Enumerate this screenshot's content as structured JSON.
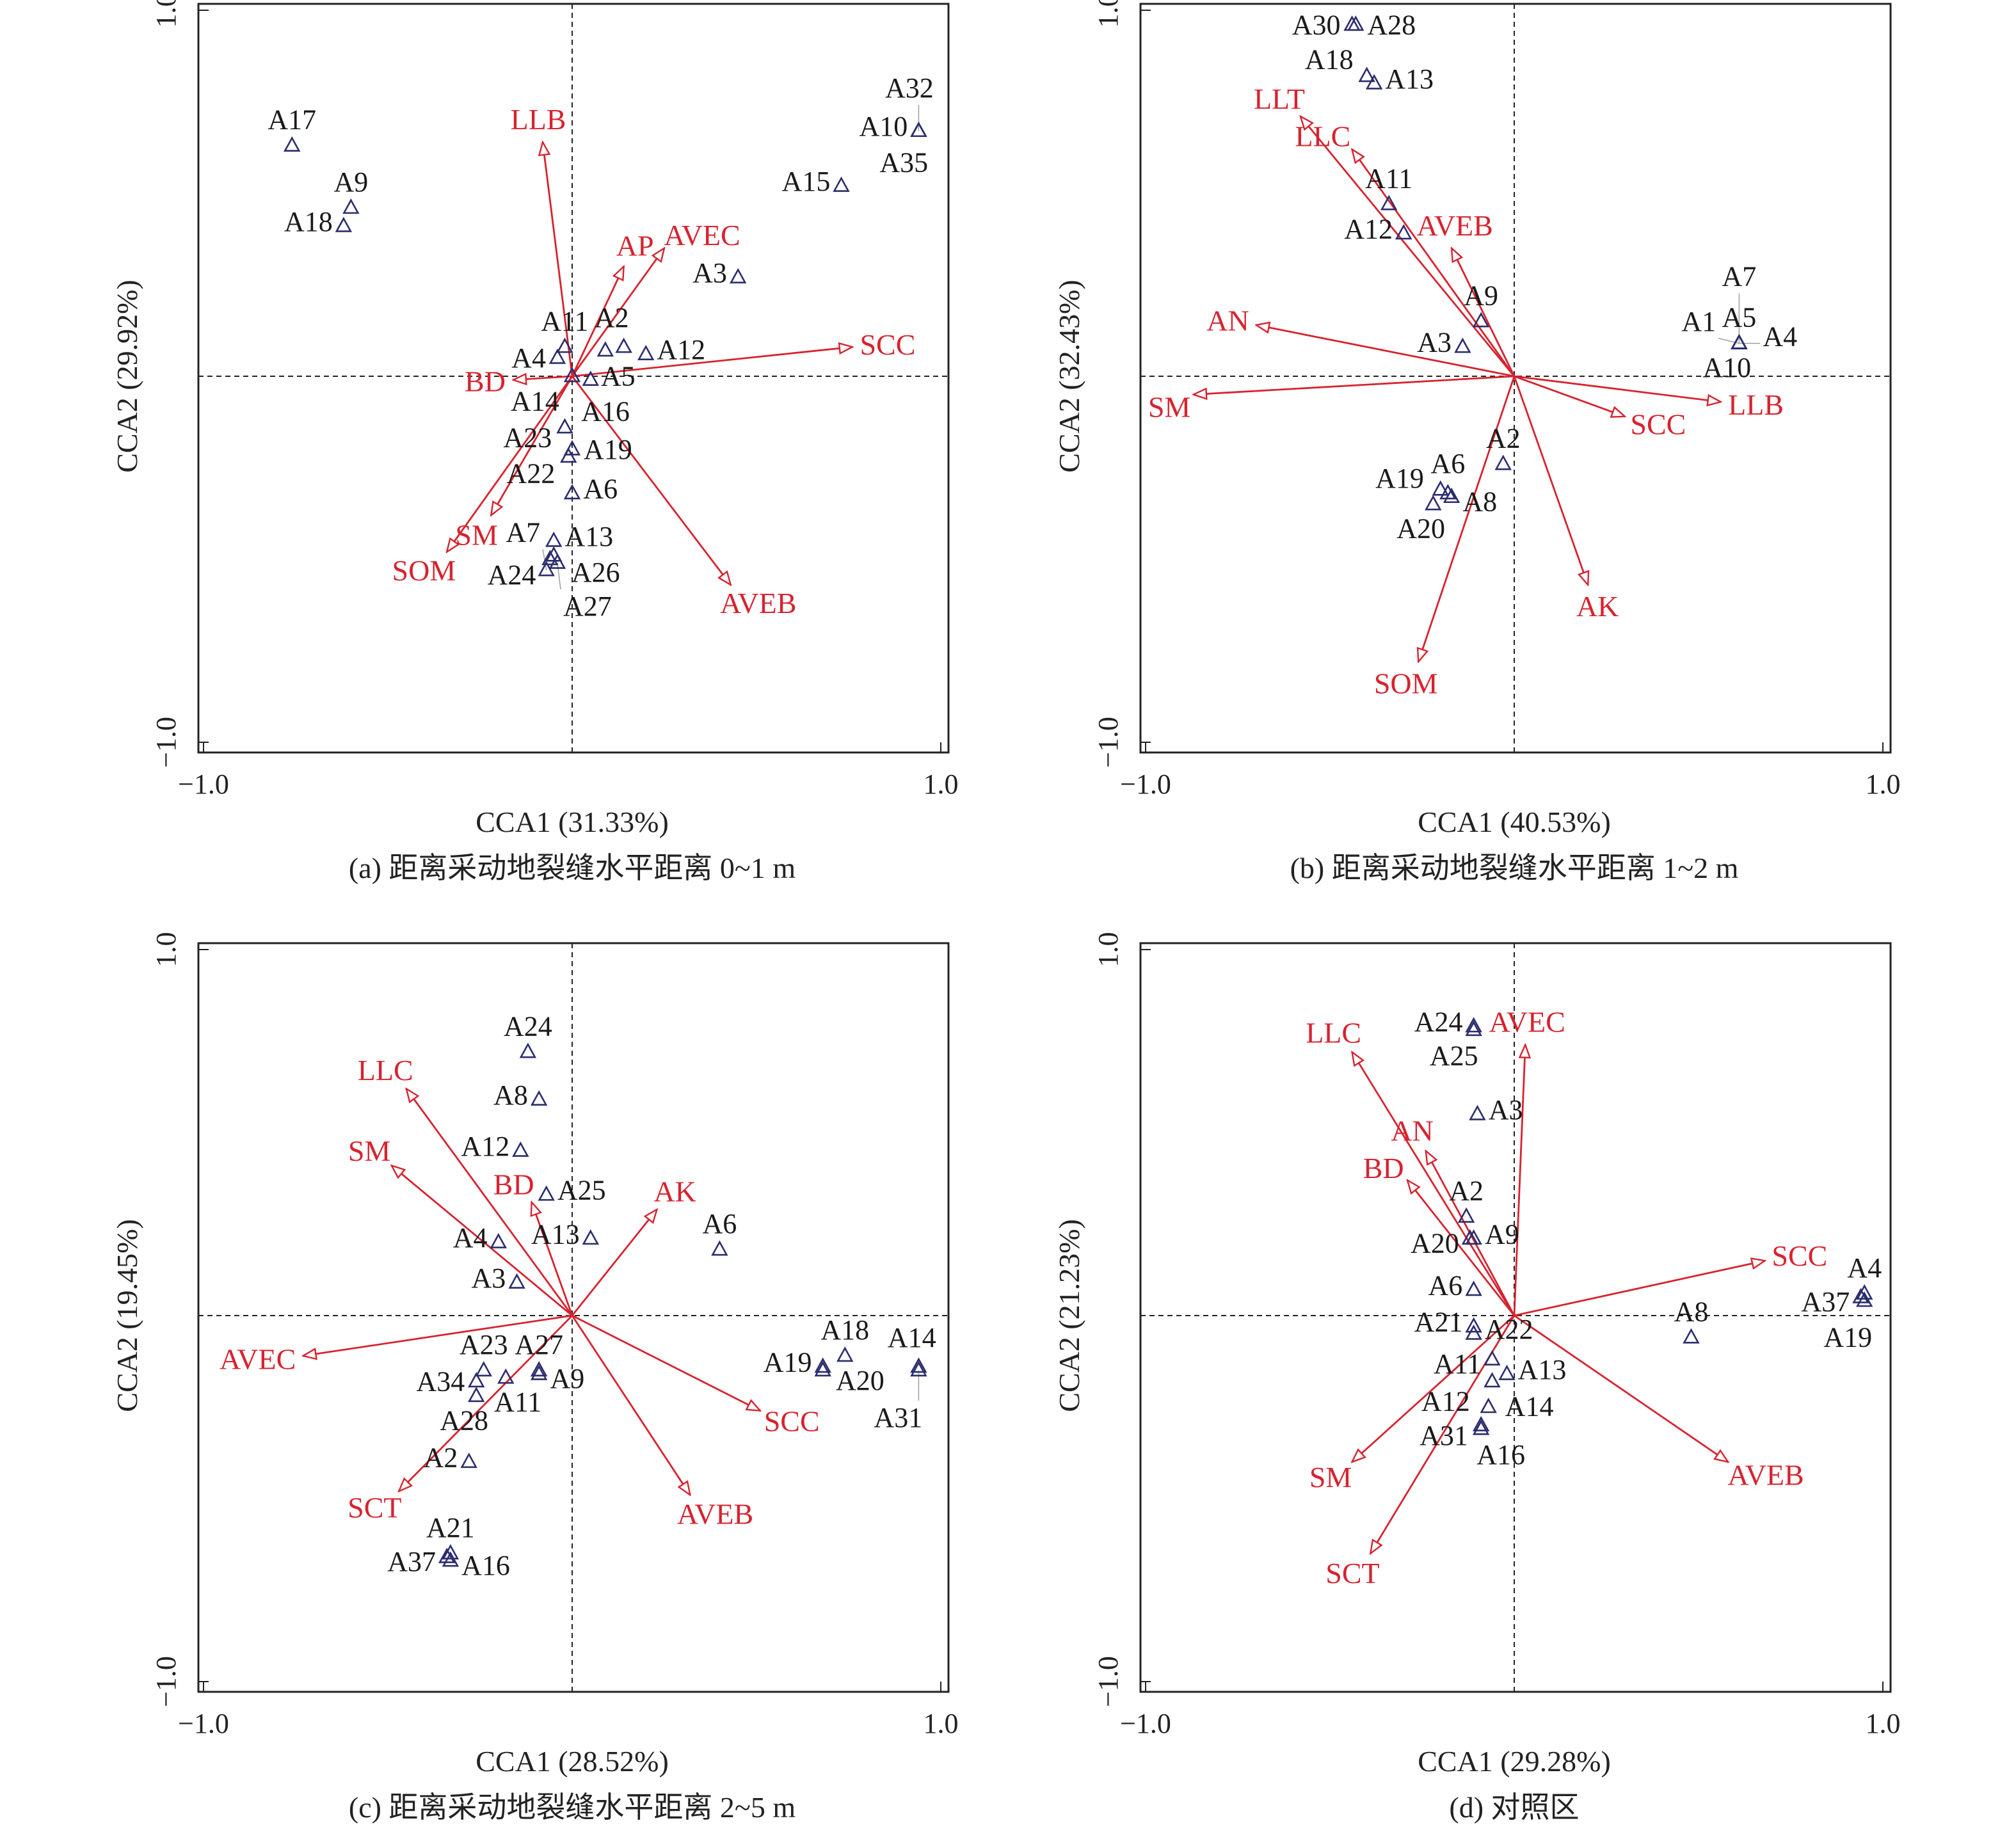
{
  "colors": {
    "arrow": "#d7232f",
    "site": "#2b2d6e",
    "axis": "#222222"
  },
  "chart_data": [
    {
      "type": "scatter",
      "caption": "(a) 距离采动地裂缝水平距离 0~1 m",
      "xlabel": "CCA1 (31.33%)",
      "ylabel": "CCA2 (29.92%)",
      "xlim": [
        -1.0,
        1.0
      ],
      "ylim": [
        -1.0,
        1.0
      ],
      "xticks": [
        "−1.0",
        "1.0"
      ],
      "yticks": [
        "−1.0",
        "1.0"
      ],
      "sites": [
        {
          "label": "A17",
          "x": -0.76,
          "y": 0.63
        },
        {
          "label": "A9",
          "x": -0.6,
          "y": 0.46
        },
        {
          "label": "A18",
          "x": -0.62,
          "y": 0.41
        },
        {
          "label": "A10",
          "x": 0.94,
          "y": 0.67
        },
        {
          "label": "A35",
          "x": 0.94,
          "y": 0.67
        },
        {
          "label": "A32",
          "x": 0.94,
          "y": 0.67
        },
        {
          "label": "A15",
          "x": 0.73,
          "y": 0.52
        },
        {
          "label": "A3",
          "x": 0.45,
          "y": 0.27
        },
        {
          "label": "A11",
          "x": -0.02,
          "y": 0.08
        },
        {
          "label": "A4",
          "x": -0.04,
          "y": 0.05
        },
        {
          "label": "A2",
          "x": 0.09,
          "y": 0.07
        },
        {
          "label": "A5",
          "x": 0.14,
          "y": 0.08
        },
        {
          "label": "A12",
          "x": 0.2,
          "y": 0.06
        },
        {
          "label": "A14",
          "x": 0.0,
          "y": 0.0
        },
        {
          "label": "A16",
          "x": 0.05,
          "y": -0.01
        },
        {
          "label": "A23",
          "x": -0.02,
          "y": -0.14
        },
        {
          "label": "A19",
          "x": 0.0,
          "y": -0.2
        },
        {
          "label": "A22",
          "x": -0.01,
          "y": -0.22
        },
        {
          "label": "A6",
          "x": 0.0,
          "y": -0.32
        },
        {
          "label": "A13",
          "x": -0.05,
          "y": -0.45
        },
        {
          "label": "A24",
          "x": -0.05,
          "y": -0.49
        },
        {
          "label": "A26",
          "x": -0.06,
          "y": -0.5
        },
        {
          "label": "A27",
          "x": -0.04,
          "y": -0.51
        },
        {
          "label": "A7",
          "x": -0.07,
          "y": -0.53
        }
      ],
      "vectors": [
        {
          "label": "LLB",
          "x": -0.08,
          "y": 0.64
        },
        {
          "label": "AP",
          "x": 0.14,
          "y": 0.3
        },
        {
          "label": "AVEC",
          "x": 0.25,
          "y": 0.35
        },
        {
          "label": "SCC",
          "x": 0.76,
          "y": 0.08
        },
        {
          "label": "BD",
          "x": -0.16,
          "y": -0.01
        },
        {
          "label": "SM",
          "x": -0.22,
          "y": -0.38
        },
        {
          "label": "SOM",
          "x": -0.34,
          "y": -0.48
        },
        {
          "label": "AVEB",
          "x": 0.43,
          "y": -0.57
        }
      ]
    },
    {
      "type": "scatter",
      "caption": "(b) 距离采动地裂缝水平距离 1~2 m",
      "xlabel": "CCA1 (40.53%)",
      "ylabel": "CCA2 (32.43%)",
      "xlim": [
        -1.0,
        1.0
      ],
      "ylim": [
        -1.0,
        1.0
      ],
      "xticks": [
        "−1.0",
        "1.0"
      ],
      "yticks": [
        "−1.0",
        "1.0"
      ],
      "sites": [
        {
          "label": "A30",
          "x": -0.44,
          "y": 0.96
        },
        {
          "label": "A28",
          "x": -0.43,
          "y": 0.96
        },
        {
          "label": "A18",
          "x": -0.4,
          "y": 0.82
        },
        {
          "label": "A13",
          "x": -0.38,
          "y": 0.8
        },
        {
          "label": "A11",
          "x": -0.34,
          "y": 0.47
        },
        {
          "label": "A12",
          "x": -0.3,
          "y": 0.39
        },
        {
          "label": "A9",
          "x": -0.09,
          "y": 0.15
        },
        {
          "label": "A3",
          "x": -0.14,
          "y": 0.08
        },
        {
          "label": "A5",
          "x": 0.61,
          "y": 0.09
        },
        {
          "label": "A10",
          "x": 0.61,
          "y": 0.09
        },
        {
          "label": "A4",
          "x": 0.61,
          "y": 0.09
        },
        {
          "label": "A1",
          "x": 0.61,
          "y": 0.09
        },
        {
          "label": "A7",
          "x": 0.61,
          "y": 0.09
        },
        {
          "label": "A2",
          "x": -0.03,
          "y": -0.24
        },
        {
          "label": "A6",
          "x": -0.18,
          "y": -0.32
        },
        {
          "label": "A19",
          "x": -0.2,
          "y": -0.31
        },
        {
          "label": "A8",
          "x": -0.17,
          "y": -0.33
        },
        {
          "label": "A20",
          "x": -0.22,
          "y": -0.35
        }
      ],
      "vectors": [
        {
          "label": "LLT",
          "x": -0.58,
          "y": 0.71
        },
        {
          "label": "LLC",
          "x": -0.44,
          "y": 0.62
        },
        {
          "label": "AVEB",
          "x": -0.17,
          "y": 0.35
        },
        {
          "label": "AN",
          "x": -0.7,
          "y": 0.14
        },
        {
          "label": "SM",
          "x": -0.87,
          "y": -0.05
        },
        {
          "label": "SCC",
          "x": 0.3,
          "y": -0.11
        },
        {
          "label": "LLB",
          "x": 0.56,
          "y": -0.07
        },
        {
          "label": "AK",
          "x": 0.2,
          "y": -0.57
        },
        {
          "label": "SOM",
          "x": -0.26,
          "y": -0.78
        }
      ]
    },
    {
      "type": "scatter",
      "caption": "(c) 距离采动地裂缝水平距离 2~5 m",
      "xlabel": "CCA1 (28.52%)",
      "ylabel": "CCA2 (19.45%)",
      "xlim": [
        -1.0,
        1.0
      ],
      "ylim": [
        -1.0,
        1.0
      ],
      "xticks": [
        "−1.0",
        "1.0"
      ],
      "yticks": [
        "−1.0",
        "1.0"
      ],
      "sites": [
        {
          "label": "A24",
          "x": -0.12,
          "y": 0.72
        },
        {
          "label": "A8",
          "x": -0.09,
          "y": 0.59
        },
        {
          "label": "A12",
          "x": -0.14,
          "y": 0.45
        },
        {
          "label": "A25",
          "x": -0.07,
          "y": 0.33
        },
        {
          "label": "A4",
          "x": -0.2,
          "y": 0.2
        },
        {
          "label": "A3",
          "x": -0.15,
          "y": 0.09
        },
        {
          "label": "A13",
          "x": 0.05,
          "y": 0.21
        },
        {
          "label": "A6",
          "x": 0.4,
          "y": 0.18
        },
        {
          "label": "A19",
          "x": 0.68,
          "y": -0.14
        },
        {
          "label": "A18",
          "x": 0.74,
          "y": -0.11
        },
        {
          "label": "A20",
          "x": 0.68,
          "y": -0.15
        },
        {
          "label": "A14",
          "x": 0.94,
          "y": -0.14
        },
        {
          "label": "A31",
          "x": 0.94,
          "y": -0.15
        },
        {
          "label": "A23",
          "x": -0.24,
          "y": -0.15
        },
        {
          "label": "A27",
          "x": -0.09,
          "y": -0.15
        },
        {
          "label": "A34",
          "x": -0.26,
          "y": -0.18
        },
        {
          "label": "A11",
          "x": -0.18,
          "y": -0.17
        },
        {
          "label": "A9",
          "x": -0.09,
          "y": -0.16
        },
        {
          "label": "A28",
          "x": -0.26,
          "y": -0.22
        },
        {
          "label": "A2",
          "x": -0.28,
          "y": -0.4
        },
        {
          "label": "A21",
          "x": -0.33,
          "y": -0.65
        },
        {
          "label": "A37",
          "x": -0.34,
          "y": -0.66
        },
        {
          "label": "A16",
          "x": -0.33,
          "y": -0.67
        }
      ],
      "vectors": [
        {
          "label": "LLC",
          "x": -0.45,
          "y": 0.62
        },
        {
          "label": "SM",
          "x": -0.49,
          "y": 0.41
        },
        {
          "label": "BD",
          "x": -0.11,
          "y": 0.31
        },
        {
          "label": "AK",
          "x": 0.23,
          "y": 0.29
        },
        {
          "label": "AVEC",
          "x": -0.73,
          "y": -0.11
        },
        {
          "label": "SCC",
          "x": 0.51,
          "y": -0.26
        },
        {
          "label": "AVEB",
          "x": 0.32,
          "y": -0.49
        },
        {
          "label": "SCT",
          "x": -0.47,
          "y": -0.48
        }
      ]
    },
    {
      "type": "scatter",
      "caption": "(d) 对照区",
      "xlabel": "CCA1 (29.28%)",
      "ylabel": "CCA2 (21.23%)",
      "xlim": [
        -1.0,
        1.0
      ],
      "ylim": [
        -1.0,
        1.0
      ],
      "xticks": [
        "−1.0",
        "1.0"
      ],
      "yticks": [
        "−1.0",
        "1.0"
      ],
      "sites": [
        {
          "label": "A24",
          "x": -0.11,
          "y": 0.79
        },
        {
          "label": "A25",
          "x": -0.11,
          "y": 0.78
        },
        {
          "label": "A3",
          "x": -0.1,
          "y": 0.55
        },
        {
          "label": "A2",
          "x": -0.13,
          "y": 0.27
        },
        {
          "label": "A20",
          "x": -0.12,
          "y": 0.21
        },
        {
          "label": "A9",
          "x": -0.11,
          "y": 0.21
        },
        {
          "label": "A6",
          "x": -0.11,
          "y": 0.07
        },
        {
          "label": "A21",
          "x": -0.11,
          "y": -0.03
        },
        {
          "label": "A22",
          "x": -0.11,
          "y": -0.05
        },
        {
          "label": "A11",
          "x": -0.06,
          "y": -0.12
        },
        {
          "label": "A13",
          "x": -0.02,
          "y": -0.16
        },
        {
          "label": "A14",
          "x": -0.06,
          "y": -0.18
        },
        {
          "label": "A12",
          "x": -0.07,
          "y": -0.25
        },
        {
          "label": "A31",
          "x": -0.09,
          "y": -0.3
        },
        {
          "label": "A16",
          "x": -0.09,
          "y": -0.31
        },
        {
          "label": "A8",
          "x": 0.48,
          "y": -0.06
        },
        {
          "label": "A4",
          "x": 0.95,
          "y": 0.06
        },
        {
          "label": "A37",
          "x": 0.94,
          "y": 0.05
        },
        {
          "label": "A19",
          "x": 0.95,
          "y": 0.04
        }
      ],
      "vectors": [
        {
          "label": "LLC",
          "x": -0.44,
          "y": 0.72
        },
        {
          "label": "AVEC",
          "x": 0.03,
          "y": 0.74
        },
        {
          "label": "AN",
          "x": -0.24,
          "y": 0.45
        },
        {
          "label": "BD",
          "x": -0.29,
          "y": 0.37
        },
        {
          "label": "SCC",
          "x": 0.68,
          "y": 0.15
        },
        {
          "label": "AVEB",
          "x": 0.58,
          "y": -0.4
        },
        {
          "label": "SM",
          "x": -0.44,
          "y": -0.4
        },
        {
          "label": "SCT",
          "x": -0.39,
          "y": -0.65
        }
      ]
    }
  ]
}
